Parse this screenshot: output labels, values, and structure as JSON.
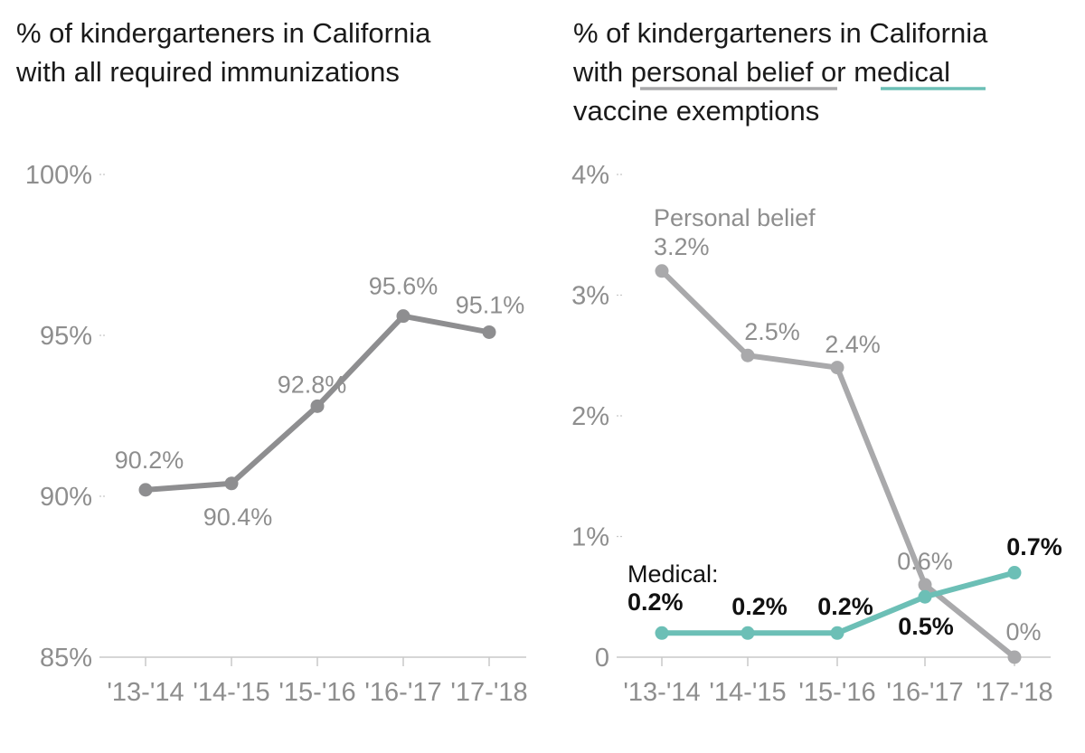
{
  "colors": {
    "immunized": "#8e8e90",
    "personal": "#a9a9ab",
    "medical": "#6cbfb6",
    "axis": "#c8c8c8",
    "tick_text": "#8e8e8e"
  },
  "chart_data": [
    {
      "type": "line",
      "title": {
        "line1": "% of kindergarteners in California",
        "line2": "with all required immunizations"
      },
      "categories": [
        "'13-'14",
        "'14-'15",
        "'15-'16",
        "'16-'17",
        "'17-'18"
      ],
      "ylim": [
        85,
        100
      ],
      "yticks": [
        {
          "value": 100,
          "label": "100%"
        },
        {
          "value": 95,
          "label": "95%"
        },
        {
          "value": 90,
          "label": "90%"
        },
        {
          "value": 85,
          "label": "85%"
        }
      ],
      "grid": false,
      "series": [
        {
          "values": [
            90.2,
            90.4,
            92.8,
            95.6,
            95.1
          ],
          "labels": [
            "90.2%",
            "90.4%",
            "92.8%",
            "95.6%",
            "95.1%"
          ]
        }
      ]
    },
    {
      "type": "line",
      "title": {
        "line1": "% of kindergarteners in California",
        "line2_prefix": "with ",
        "line2_personal": "personal belief",
        "line2_mid": " or ",
        "line2_medical": "medical",
        "line3": "vaccine exemptions"
      },
      "categories": [
        "'13-'14",
        "'14-'15",
        "'15-'16",
        "'16-'17",
        "'17-'18"
      ],
      "ylim": [
        0,
        4
      ],
      "yticks": [
        {
          "value": 4,
          "label": "4%"
        },
        {
          "value": 3,
          "label": "3%"
        },
        {
          "value": 2,
          "label": "2%"
        },
        {
          "value": 1,
          "label": "1%"
        },
        {
          "value": 0,
          "label": "0"
        }
      ],
      "grid": false,
      "series": [
        {
          "name": "Personal belief",
          "values": [
            3.2,
            2.5,
            2.4,
            0.6,
            0.0
          ],
          "labels": [
            "3.2%",
            "2.5%",
            "2.4%",
            "0.6%",
            "0%"
          ]
        },
        {
          "name": "Medical:",
          "values": [
            0.2,
            0.2,
            0.2,
            0.5,
            0.7
          ],
          "labels": [
            "0.2%",
            "0.2%",
            "0.2%",
            "0.5%",
            "0.7%"
          ]
        }
      ]
    }
  ]
}
